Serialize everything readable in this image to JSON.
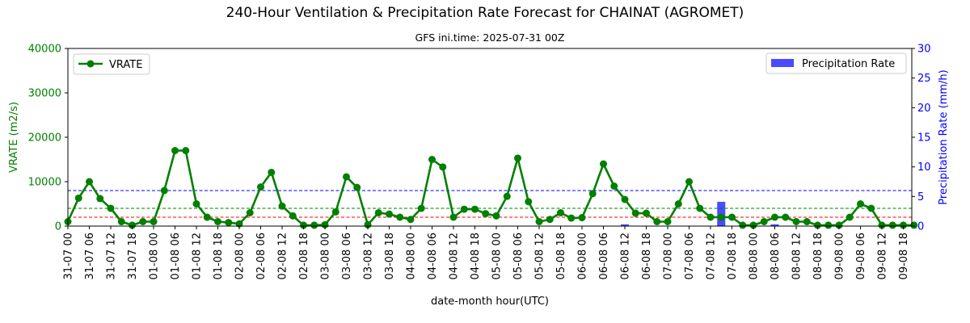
{
  "chart_data": {
    "type": "line",
    "title": "240-Hour Ventilation & Precipitation Rate Forecast for CHAINAT (AGROMET)",
    "subtitle": "GFS ini.time: 2025-07-31 00Z",
    "xlabel": "date-month hour(UTC)",
    "ylabel": "VRATE (m2/s)",
    "y2label": "Precipitation Rate (mm/h)",
    "ylim": [
      0,
      40000
    ],
    "y2lim": [
      0,
      30
    ],
    "yticks": [
      "0",
      "10000",
      "20000",
      "30000",
      "40000"
    ],
    "y2ticks": [
      "0",
      "5",
      "10",
      "15",
      "20",
      "25",
      "30"
    ],
    "xticks": [
      "31-07 00",
      "31-07 06",
      "31-07 12",
      "31-07 18",
      "01-08 00",
      "01-08 06",
      "01-08 12",
      "01-08 18",
      "02-08 00",
      "02-08 06",
      "02-08 12",
      "02-08 18",
      "03-08 00",
      "03-08 06",
      "03-08 12",
      "03-08 18",
      "04-08 00",
      "04-08 06",
      "04-08 12",
      "04-08 18",
      "05-08 00",
      "05-08 06",
      "05-08 12",
      "05-08 18",
      "06-08 00",
      "06-08 06",
      "06-08 12",
      "06-08 18",
      "07-08 00",
      "07-08 06",
      "07-08 12",
      "07-08 18",
      "08-08 00",
      "08-08 06",
      "08-08 12",
      "08-08 18",
      "09-08 00",
      "09-08 06",
      "09-08 12",
      "09-08 18"
    ],
    "series": [
      {
        "name": "VRATE",
        "axis": "left",
        "color": "#008000",
        "values": [
          1000,
          6300,
          10000,
          6200,
          4000,
          1000,
          200,
          1000,
          1000,
          8000,
          17000,
          17000,
          5000,
          2000,
          1000,
          800,
          500,
          3000,
          8800,
          12100,
          4500,
          2300,
          200,
          200,
          300,
          3200,
          11100,
          8700,
          300,
          3000,
          2700,
          2000,
          1500,
          4000,
          15000,
          13300,
          2000,
          3800,
          3800,
          2800,
          2300,
          6700,
          15300,
          5500,
          1000,
          1500,
          3000,
          1800,
          1900,
          7300,
          14000,
          9000,
          6000,
          2900,
          2900,
          1000,
          1000,
          5000,
          10000,
          4000,
          2000,
          2000,
          2000,
          200,
          200,
          1000,
          2000,
          2000,
          1000,
          1000,
          200,
          200,
          200,
          2000,
          5000,
          4000,
          200,
          200,
          200,
          200
        ]
      },
      {
        "name": "Precipitation Rate",
        "axis": "right",
        "type": "bar",
        "color": "#4a4aff",
        "values": [
          0,
          0,
          0,
          0,
          0,
          0,
          0,
          0,
          0,
          0,
          0,
          0,
          0,
          0,
          0,
          0,
          0,
          0,
          0,
          0,
          0,
          0,
          0,
          0,
          0,
          0,
          0,
          0,
          0,
          0,
          0,
          0,
          0,
          0,
          0,
          0,
          0,
          0,
          0,
          0,
          0,
          0,
          0,
          0,
          0,
          0,
          0,
          0,
          0,
          0,
          0,
          0,
          0.3,
          0,
          0,
          0,
          0,
          0,
          0,
          0,
          0,
          4.1,
          0,
          0,
          0,
          0,
          0.3,
          0,
          0,
          0,
          0,
          0,
          0,
          0,
          0,
          0,
          0,
          0.3,
          0.3,
          0
        ]
      }
    ],
    "reference_lines": [
      {
        "value": 8000,
        "color": "#0000ff"
      },
      {
        "value": 4000,
        "color": "#008000"
      },
      {
        "value": 2000,
        "color": "#ff0000"
      }
    ],
    "legend": {
      "left": "top-left",
      "right": "top-right"
    },
    "grid": false
  }
}
